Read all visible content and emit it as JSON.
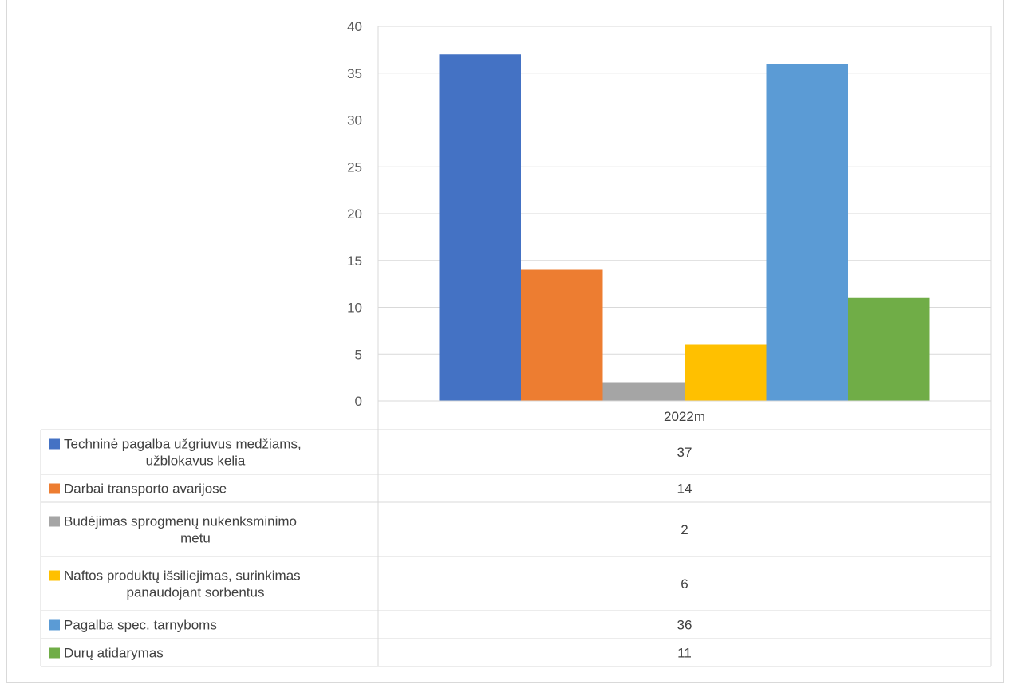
{
  "chart_data": {
    "type": "bar",
    "title": "",
    "categories": [
      "2022m"
    ],
    "ylim": [
      0,
      40
    ],
    "yticks": [
      0,
      5,
      10,
      15,
      20,
      25,
      30,
      35,
      40
    ],
    "grid": true,
    "legend_placement": "data-table",
    "series": [
      {
        "name_lines": [
          "Techninė pagalba užgriuvus medžiams,",
          "užblokavus kelia"
        ],
        "name": "Techninė pagalba užgriuvus medžiams, užblokavus kelia",
        "values": [
          37
        ],
        "color": "#4472c4"
      },
      {
        "name_lines": [
          "Darbai transporto avarijose"
        ],
        "name": "Darbai transporto avarijose",
        "values": [
          14
        ],
        "color": "#ed7d31"
      },
      {
        "name_lines": [
          "Budėjimas sprogmenų nukenksminimo",
          "metu"
        ],
        "name": "Budėjimas sprogmenų nukenksminimo metu",
        "values": [
          2
        ],
        "color": "#a5a5a5"
      },
      {
        "name_lines": [
          "Naftos produktų išsiliejimas, surinkimas",
          "panaudojant sorbentus"
        ],
        "name": "Naftos produktų išsiliejimas, surinkimas panaudojant sorbentus",
        "values": [
          6
        ],
        "color": "#ffc000"
      },
      {
        "name_lines": [
          "Pagalba spec. tarnyboms"
        ],
        "name": "Pagalba spec. tarnyboms",
        "values": [
          36
        ],
        "color": "#5b9bd5"
      },
      {
        "name_lines": [
          "Durų atidarymas"
        ],
        "name": "Durų atidarymas",
        "values": [
          11
        ],
        "color": "#70ad47"
      }
    ]
  }
}
